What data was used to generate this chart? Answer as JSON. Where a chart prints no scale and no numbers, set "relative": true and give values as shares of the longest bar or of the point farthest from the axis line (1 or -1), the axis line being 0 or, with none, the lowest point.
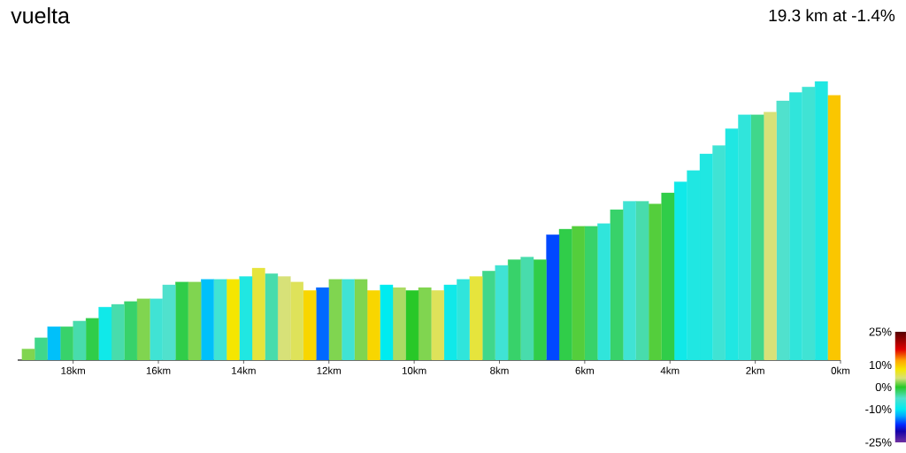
{
  "chart_data": {
    "type": "bar",
    "title": "vuelta",
    "subtitle": "19.3 km at -1.4%",
    "relative": true,
    "x": [
      0.15,
      0.45,
      0.75,
      1.05,
      1.35,
      1.65,
      1.95,
      2.25,
      2.55,
      2.85,
      3.15,
      3.45,
      3.75,
      4.05,
      4.35,
      4.65,
      4.95,
      5.25,
      5.55,
      5.85,
      6.15,
      6.45,
      6.75,
      7.05,
      7.35,
      7.65,
      7.95,
      8.25,
      8.55,
      8.85,
      9.15,
      9.45,
      9.75,
      10.05,
      10.35,
      10.65,
      10.95,
      11.25,
      11.55,
      11.85,
      12.15,
      12.45,
      12.75,
      13.05,
      13.35,
      13.65,
      13.95,
      14.25,
      14.55,
      14.85,
      15.15,
      15.45,
      15.75,
      16.05,
      16.35,
      16.65,
      16.95,
      17.25,
      17.55,
      17.85,
      18.15,
      18.45,
      18.75,
      19.05
    ],
    "values": [
      0.95,
      1.0,
      0.98,
      0.96,
      0.93,
      0.89,
      0.88,
      0.88,
      0.83,
      0.77,
      0.74,
      0.68,
      0.64,
      0.6,
      0.56,
      0.57,
      0.57,
      0.54,
      0.49,
      0.48,
      0.48,
      0.47,
      0.45,
      0.36,
      0.37,
      0.36,
      0.34,
      0.32,
      0.3,
      0.29,
      0.27,
      0.25,
      0.26,
      0.25,
      0.26,
      0.27,
      0.25,
      0.29,
      0.29,
      0.29,
      0.26,
      0.25,
      0.28,
      0.3,
      0.31,
      0.33,
      0.3,
      0.29,
      0.29,
      0.29,
      0.28,
      0.28,
      0.27,
      0.22,
      0.22,
      0.21,
      0.2,
      0.19,
      0.15,
      0.14,
      0.12,
      0.12,
      0.08,
      0.04
    ],
    "cvalues": [
      10,
      -8,
      -6,
      -7,
      -5,
      4,
      -3,
      -7,
      -8,
      -6,
      -8,
      -8,
      -9,
      -1,
      1,
      -4,
      -6,
      -2,
      -7,
      -2,
      1,
      -1,
      -16,
      -1,
      -4,
      -2,
      -6,
      -3,
      6,
      -7,
      -9,
      5,
      2,
      0,
      3,
      -10,
      9,
      2,
      -6,
      2,
      -15,
      9,
      5,
      4,
      -4,
      6,
      -8,
      8,
      -6,
      -12,
      2,
      -1,
      -5,
      -6,
      2,
      -2,
      -4,
      -9,
      -1,
      -4,
      -2,
      -12,
      -3,
      2
    ],
    "clim": [
      -25,
      25
    ],
    "cticks": [
      {
        "value": 25,
        "label": "25%"
      },
      {
        "value": 10,
        "label": "10%"
      },
      {
        "value": 0,
        "label": "0%"
      },
      {
        "value": -10,
        "label": "-10%"
      },
      {
        "value": -25,
        "label": "-25%"
      }
    ],
    "xlim": [
      19.3,
      0
    ],
    "xticks": [
      {
        "value": 0,
        "label": "0km"
      },
      {
        "value": 2,
        "label": "2km"
      },
      {
        "value": 4,
        "label": "4km"
      },
      {
        "value": 6,
        "label": "6km"
      },
      {
        "value": 8,
        "label": "8km"
      },
      {
        "value": 10,
        "label": "10km"
      },
      {
        "value": 12,
        "label": "12km"
      },
      {
        "value": 14,
        "label": "14km"
      },
      {
        "value": 16,
        "label": "16km"
      },
      {
        "value": 18,
        "label": "18km"
      }
    ]
  }
}
